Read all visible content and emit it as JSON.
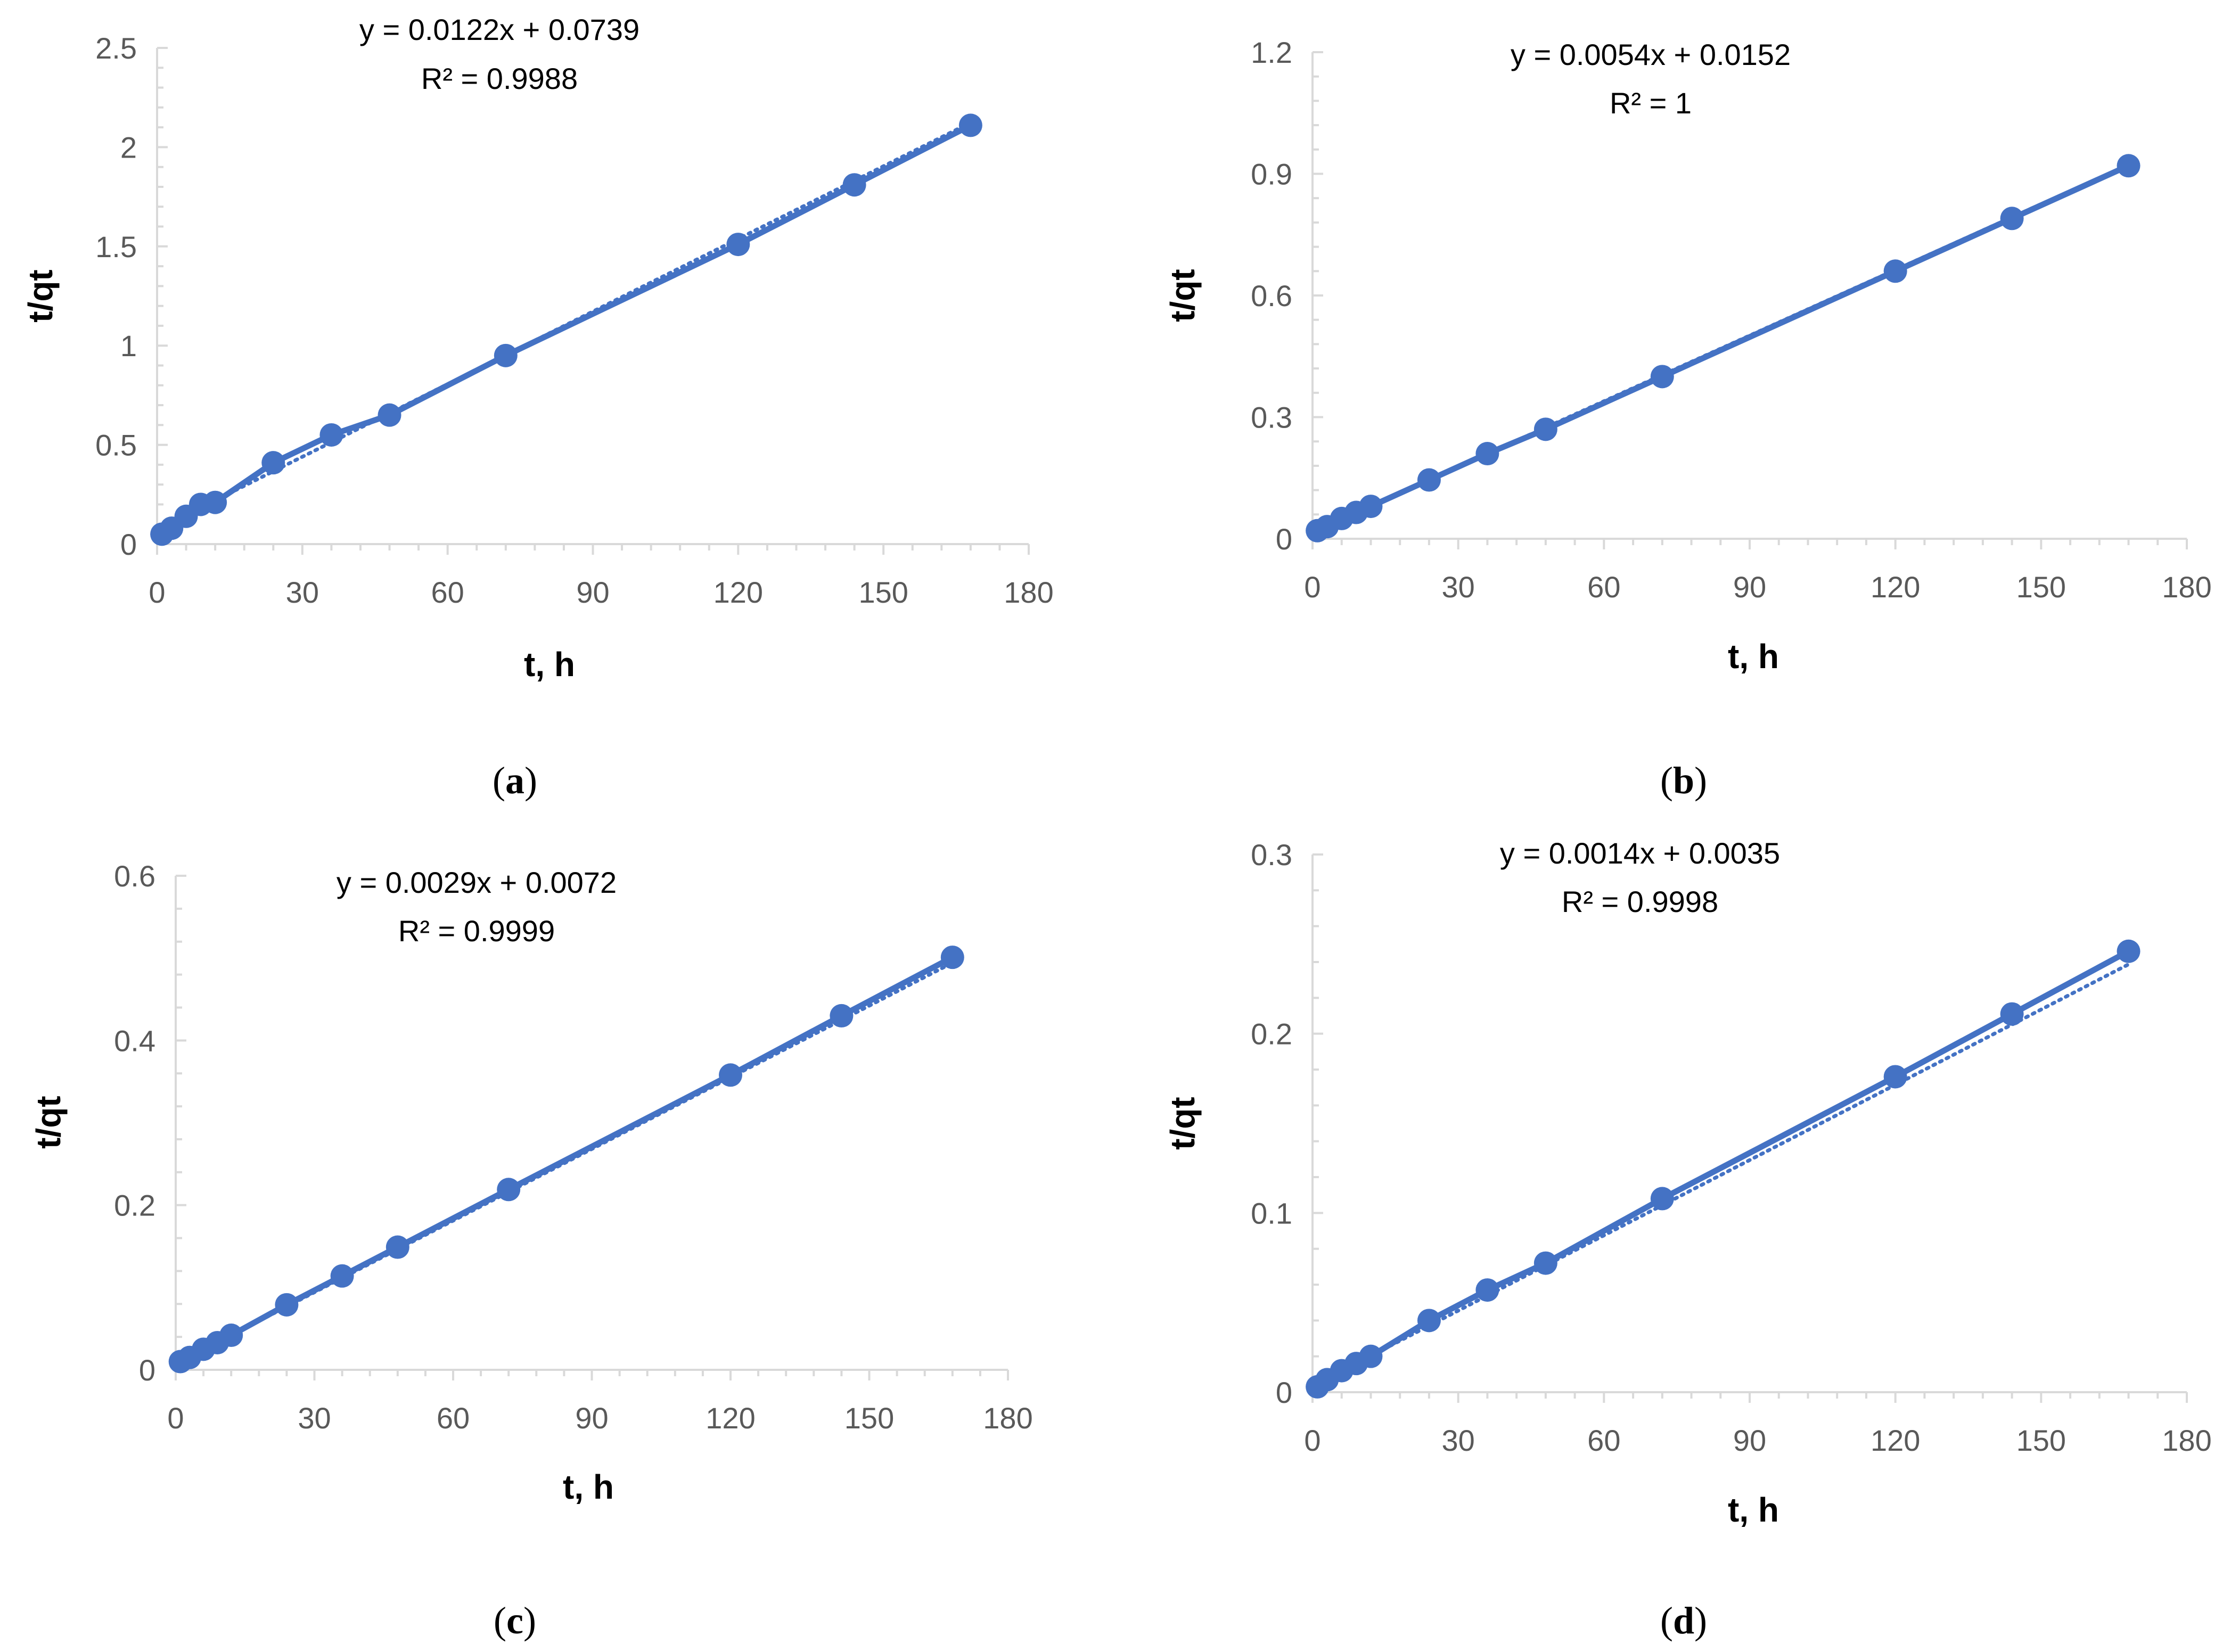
{
  "series_color": "#4472C4",
  "chart_data": [
    {
      "id": "a",
      "type": "scatter",
      "panel_label": "a",
      "xlabel": "t, h",
      "ylabel": "t/qt",
      "xlim": [
        0,
        180
      ],
      "ylim": [
        0,
        2.5
      ],
      "xticks": [
        0,
        30,
        60,
        90,
        120,
        150,
        180
      ],
      "yticks": [
        "0",
        "0.5",
        "1",
        "1.5",
        "2",
        "2.5"
      ],
      "equation": "y = 0.0122x + 0.0739",
      "r2": "R² = 0.9988",
      "trendline": {
        "slope": 0.0122,
        "intercept": 0.0739
      },
      "x": [
        1,
        3,
        6,
        9,
        12,
        24,
        36,
        48,
        72,
        120,
        144,
        168
      ],
      "y": [
        0.05,
        0.08,
        0.14,
        0.2,
        0.21,
        0.41,
        0.55,
        0.65,
        0.95,
        1.51,
        1.81,
        2.11
      ]
    },
    {
      "id": "b",
      "type": "scatter",
      "panel_label": "b",
      "xlabel": "t, h",
      "ylabel": "t/qt",
      "xlim": [
        0,
        180
      ],
      "ylim": [
        0,
        1.2
      ],
      "xticks": [
        0,
        30,
        60,
        90,
        120,
        150,
        180
      ],
      "yticks": [
        "0",
        "0.3",
        "0.6",
        "0.9",
        "1.2"
      ],
      "equation": "y = 0.0054x + 0.0152",
      "r2": "R² = 1",
      "trendline": {
        "slope": 0.0054,
        "intercept": 0.0152
      },
      "x": [
        1,
        3,
        6,
        9,
        12,
        24,
        36,
        48,
        72,
        120,
        144,
        168
      ],
      "y": [
        0.02,
        0.03,
        0.05,
        0.065,
        0.08,
        0.145,
        0.21,
        0.27,
        0.4,
        0.66,
        0.79,
        0.92
      ]
    },
    {
      "id": "c",
      "type": "scatter",
      "panel_label": "c",
      "xlabel": "t, h",
      "ylabel": "t/qt",
      "xlim": [
        0,
        180
      ],
      "ylim": [
        0,
        0.6
      ],
      "xticks": [
        0,
        30,
        60,
        90,
        120,
        150,
        180
      ],
      "yticks": [
        "0",
        "0.2",
        "0.4",
        "0.6"
      ],
      "equation": "y = 0.0029x + 0.0072",
      "r2": "R² = 0.9999",
      "trendline": {
        "slope": 0.0029,
        "intercept": 0.0072
      },
      "x": [
        1,
        3,
        6,
        9,
        12,
        24,
        36,
        48,
        72,
        120,
        144,
        168
      ],
      "y": [
        0.01,
        0.015,
        0.025,
        0.033,
        0.042,
        0.079,
        0.114,
        0.149,
        0.219,
        0.358,
        0.43,
        0.501
      ]
    },
    {
      "id": "d",
      "type": "scatter",
      "panel_label": "d",
      "xlabel": "t, h",
      "ylabel": "t/qt",
      "xlim": [
        0,
        180
      ],
      "ylim": [
        0,
        0.3
      ],
      "xticks": [
        0,
        30,
        60,
        90,
        120,
        150,
        180
      ],
      "yticks": [
        "0",
        "0.1",
        "0.2",
        "0.3"
      ],
      "equation": "y = 0.0014x + 0.0035",
      "r2": "R² = 0.9998",
      "trendline": {
        "slope": 0.0014,
        "intercept": 0.0035
      },
      "x": [
        1,
        3,
        6,
        9,
        12,
        24,
        36,
        48,
        72,
        120,
        144,
        168
      ],
      "y": [
        0.003,
        0.007,
        0.012,
        0.016,
        0.02,
        0.04,
        0.057,
        0.072,
        0.108,
        0.176,
        0.211,
        0.246
      ]
    }
  ]
}
